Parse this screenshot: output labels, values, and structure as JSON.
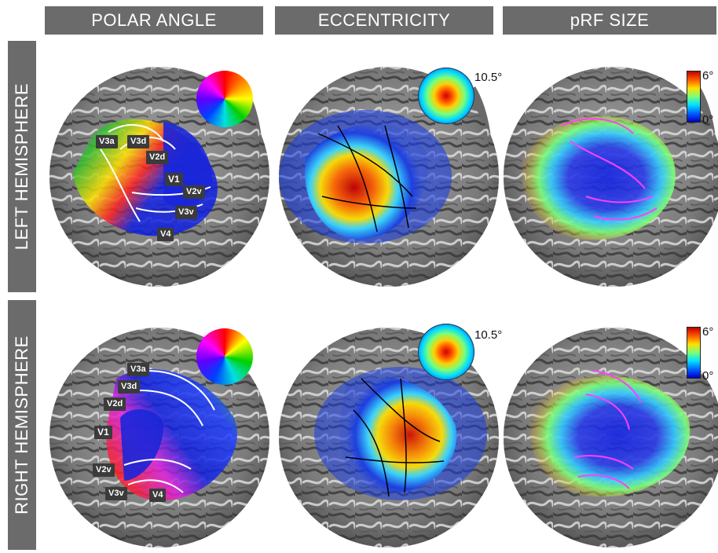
{
  "columns": [
    "POLAR ANGLE",
    "ECCENTRICITY",
    "pRF SIZE"
  ],
  "rows": [
    "LEFT HEMISPHERE",
    "RIGHT HEMISPHERE"
  ],
  "roi_labels": [
    "V3a",
    "V3d",
    "V2d",
    "V1",
    "V2v",
    "V3v",
    "V4"
  ],
  "legends": {
    "eccentricity_max": "10.5°",
    "prf_size_max": "6°",
    "prf_size_min": "0°"
  },
  "colors": {
    "header_bg": "#6b6b6b",
    "label_bg": "#3b3b3b",
    "brain_gray": "#8a8a8a"
  }
}
